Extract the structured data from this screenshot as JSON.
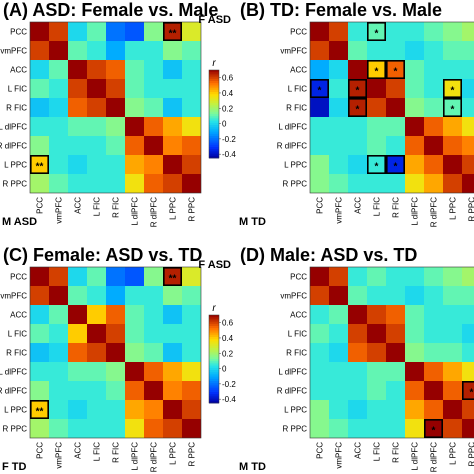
{
  "chart_data": [
    {
      "type": "heatmap",
      "title": "(A) ASD: Female vs. Male",
      "upper_label": "F ASD",
      "lower_label": "M ASD",
      "labels": [
        "PCC",
        "vmPFC",
        "ACC",
        "L FIC",
        "R FIC",
        "L dlPFC",
        "R dlPFC",
        "L PPC",
        "R PPC"
      ],
      "colorbar": {
        "label": "r",
        "ticks": [
          0.6,
          0.4,
          0.2,
          0,
          -0.2,
          -0.4
        ],
        "range": [
          -0.45,
          0.7
        ]
      },
      "matrix": [
        [
          0.7,
          0.6,
          0.0,
          0.1,
          -0.2,
          -0.25,
          0.15,
          0.65,
          0.3
        ],
        [
          0.6,
          0.7,
          0.1,
          0.05,
          -0.1,
          0.05,
          0.05,
          0.15,
          0.1
        ],
        [
          0.0,
          0.1,
          0.7,
          0.6,
          0.55,
          0.1,
          0.05,
          -0.05,
          0.05
        ],
        [
          0.1,
          0.05,
          0.6,
          0.7,
          0.6,
          0.1,
          0.05,
          0.05,
          0.05
        ],
        [
          -0.05,
          0.0,
          0.55,
          0.6,
          0.7,
          0.15,
          0.1,
          -0.05,
          0.05
        ],
        [
          0.05,
          0.05,
          0.1,
          0.1,
          0.15,
          0.7,
          0.55,
          0.45,
          0.35
        ],
        [
          0.15,
          0.05,
          0.05,
          0.05,
          0.1,
          0.55,
          0.7,
          0.5,
          0.55
        ],
        [
          0.4,
          0.05,
          0.0,
          0.05,
          0.05,
          0.45,
          0.5,
          0.7,
          0.6
        ],
        [
          0.2,
          0.1,
          0.05,
          0.05,
          0.05,
          0.35,
          0.55,
          0.6,
          0.7
        ]
      ],
      "significant": [
        {
          "row": 0,
          "col": 7,
          "marker": "**"
        },
        {
          "row": 7,
          "col": 0,
          "marker": "**"
        }
      ]
    },
    {
      "type": "heatmap",
      "title": "(B) TD: Female vs. Male",
      "upper_label": "",
      "lower_label": "M TD",
      "labels": [
        "PCC",
        "vmPFC",
        "ACC",
        "L FIC",
        "R FIC",
        "L dlPFC",
        "R dlPFC",
        "L PPC",
        "R PPC"
      ],
      "matrix": [
        [
          0.7,
          0.6,
          0.05,
          0.1,
          0.05,
          0.05,
          0.1,
          0.15,
          0.2
        ],
        [
          0.6,
          0.7,
          0.1,
          0.05,
          0.05,
          0.0,
          0.05,
          0.1,
          0.1
        ],
        [
          -0.1,
          0.0,
          0.7,
          0.4,
          0.55,
          0.1,
          0.05,
          0.05,
          0.05
        ],
        [
          -0.35,
          0.05,
          0.65,
          0.7,
          0.6,
          0.1,
          0.05,
          0.35,
          0.0
        ],
        [
          -0.4,
          0.0,
          0.65,
          0.6,
          0.7,
          0.15,
          0.1,
          0.1,
          0.05
        ],
        [
          0.05,
          0.05,
          0.05,
          0.1,
          0.1,
          0.7,
          0.55,
          0.45,
          0.35
        ],
        [
          0.05,
          0.05,
          0.05,
          0.1,
          0.05,
          0.55,
          0.7,
          0.55,
          0.5
        ],
        [
          0.15,
          0.05,
          0.0,
          0.05,
          -0.35,
          0.45,
          0.55,
          0.7,
          0.6
        ],
        [
          0.15,
          0.1,
          0.05,
          0.05,
          0.05,
          0.35,
          0.45,
          0.6,
          0.7
        ]
      ],
      "significant": [
        {
          "row": 0,
          "col": 3,
          "marker": "*"
        },
        {
          "row": 2,
          "col": 3,
          "marker": "*"
        },
        {
          "row": 2,
          "col": 4,
          "marker": "*"
        },
        {
          "row": 3,
          "col": 0,
          "marker": "*"
        },
        {
          "row": 3,
          "col": 2,
          "marker": "*"
        },
        {
          "row": 3,
          "col": 7,
          "marker": "*"
        },
        {
          "row": 4,
          "col": 2,
          "marker": "*"
        },
        {
          "row": 4,
          "col": 7,
          "marker": "*"
        },
        {
          "row": 7,
          "col": 3,
          "marker": "*"
        },
        {
          "row": 7,
          "col": 4,
          "marker": "*"
        }
      ]
    },
    {
      "type": "heatmap",
      "title": "(C) Female: ASD vs. TD",
      "upper_label": "F ASD",
      "lower_label": "F TD",
      "labels": [
        "PCC",
        "vmPFC",
        "ACC",
        "L FIC",
        "R FIC",
        "L dlPFC",
        "R dlPFC",
        "L PPC",
        "R PPC"
      ],
      "colorbar": {
        "label": "r",
        "ticks": [
          0.6,
          0.4,
          0.2,
          0,
          -0.2,
          -0.4
        ],
        "range": [
          -0.45,
          0.7
        ]
      },
      "matrix": [
        [
          0.7,
          0.6,
          0.0,
          0.1,
          -0.2,
          -0.25,
          0.15,
          0.65,
          0.3
        ],
        [
          0.6,
          0.7,
          0.1,
          0.05,
          -0.1,
          0.05,
          0.05,
          0.15,
          0.1
        ],
        [
          0.0,
          0.1,
          0.7,
          0.4,
          0.55,
          0.1,
          0.05,
          -0.05,
          0.05
        ],
        [
          0.1,
          0.05,
          0.4,
          0.7,
          0.6,
          0.1,
          0.05,
          0.05,
          0.05
        ],
        [
          -0.05,
          0.0,
          0.55,
          0.6,
          0.7,
          0.15,
          0.1,
          -0.05,
          0.05
        ],
        [
          0.05,
          0.05,
          0.1,
          0.1,
          0.15,
          0.7,
          0.55,
          0.45,
          0.35
        ],
        [
          0.15,
          0.05,
          0.05,
          0.05,
          0.1,
          0.55,
          0.7,
          0.5,
          0.55
        ],
        [
          0.4,
          0.05,
          0.0,
          0.05,
          0.05,
          0.45,
          0.5,
          0.7,
          0.6
        ],
        [
          0.2,
          0.1,
          0.05,
          0.05,
          0.05,
          0.35,
          0.55,
          0.6,
          0.7
        ]
      ],
      "significant": [
        {
          "row": 0,
          "col": 7,
          "marker": "**"
        },
        {
          "row": 7,
          "col": 0,
          "marker": "**"
        }
      ]
    },
    {
      "type": "heatmap",
      "title": "(D) Male: ASD vs. TD",
      "upper_label": "",
      "lower_label": "M TD",
      "labels": [
        "PCC",
        "vmPFC",
        "ACC",
        "L FIC",
        "R FIC",
        "L dlPFC",
        "R dlPFC",
        "L PPC",
        "R PPC"
      ],
      "matrix": [
        [
          0.7,
          0.6,
          0.05,
          0.1,
          0.05,
          0.05,
          0.1,
          0.15,
          0.2
        ],
        [
          0.6,
          0.7,
          0.1,
          0.05,
          0.05,
          0.0,
          0.05,
          0.1,
          0.1
        ],
        [
          0.05,
          0.1,
          0.7,
          0.6,
          0.55,
          0.1,
          0.05,
          0.05,
          0.05
        ],
        [
          0.1,
          0.05,
          0.6,
          0.7,
          0.6,
          0.1,
          0.05,
          0.05,
          0.0
        ],
        [
          0.05,
          0.0,
          0.55,
          0.6,
          0.7,
          0.15,
          0.1,
          0.1,
          0.05
        ],
        [
          0.05,
          0.05,
          0.05,
          0.1,
          0.1,
          0.7,
          0.55,
          0.45,
          0.35
        ],
        [
          0.05,
          0.05,
          0.05,
          0.1,
          0.05,
          0.55,
          0.7,
          0.55,
          0.65
        ],
        [
          0.15,
          0.05,
          0.0,
          0.05,
          0.05,
          0.45,
          0.55,
          0.7,
          0.6
        ],
        [
          0.15,
          0.1,
          0.05,
          0.05,
          0.05,
          0.35,
          0.7,
          0.6,
          0.7
        ]
      ],
      "significant": [
        {
          "row": 6,
          "col": 8,
          "marker": "*"
        },
        {
          "row": 8,
          "col": 6,
          "marker": "*"
        }
      ]
    }
  ]
}
